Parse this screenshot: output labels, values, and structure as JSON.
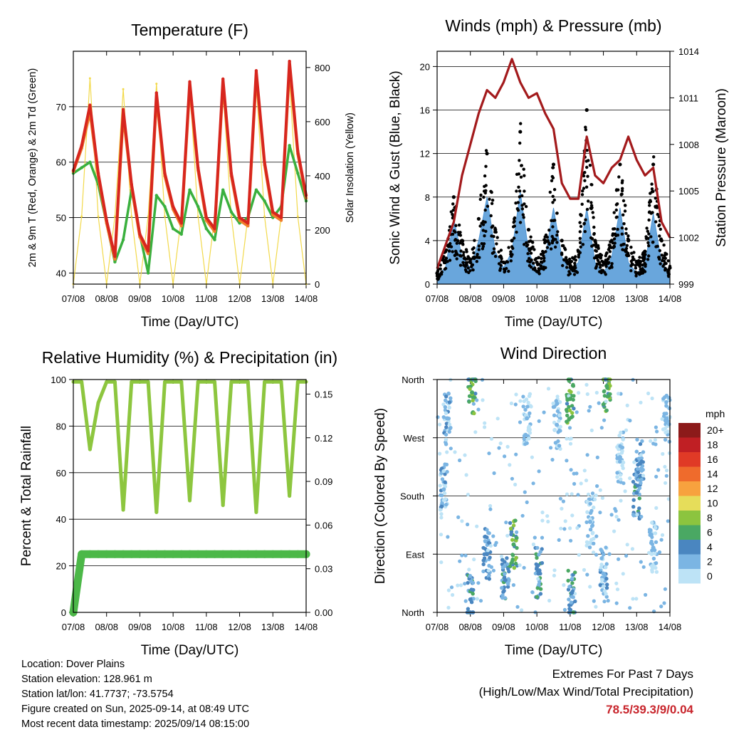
{
  "x_ticks": [
    "07/08",
    "08/08",
    "09/08",
    "10/08",
    "11/08",
    "12/08",
    "13/08",
    "14/08"
  ],
  "chart_data": [
    {
      "type": "line",
      "title": "Temperature (F)",
      "xlabel": "Time (Day/UTC)",
      "ylabel": "2m & 9m T (Red, Orange) & 2m Td (Green)",
      "ylabel_right": "Solar Insolation (Yellow)",
      "ylim": [
        38,
        80
      ],
      "yticks": [
        40,
        50,
        60,
        70
      ],
      "ylim_right": [
        0,
        860
      ],
      "yticks_right": [
        0,
        200,
        400,
        600,
        800
      ],
      "x": [
        0,
        0.25,
        0.5,
        0.75,
        1,
        1.25,
        1.5,
        1.75,
        2,
        2.25,
        2.5,
        2.75,
        3,
        3.25,
        3.5,
        3.75,
        4,
        4.25,
        4.5,
        4.75,
        5,
        5.25,
        5.5,
        5.75,
        6,
        6.25,
        6.5,
        6.75,
        7
      ],
      "series": [
        {
          "color": "#d7261e",
          "values": [
            58.5,
            63,
            70.3,
            58,
            49.5,
            43,
            69.5,
            56,
            47,
            44,
            72.5,
            58,
            52,
            49,
            74.5,
            59,
            50,
            48,
            75,
            58,
            50,
            49,
            76.5,
            60,
            51,
            50,
            78.2,
            62,
            54
          ]
        },
        {
          "color": "#f07d2a",
          "values": [
            58.3,
            62.5,
            69,
            57.5,
            49,
            42.5,
            68.5,
            55.5,
            46.5,
            43.5,
            71.5,
            57.5,
            51.5,
            48.5,
            73.5,
            58.5,
            49.5,
            47.5,
            74,
            57.5,
            49.5,
            48.5,
            75.5,
            59.5,
            50.5,
            49.5,
            77,
            61.5,
            53.5
          ]
        },
        {
          "color": "#3ab03e",
          "values": [
            58,
            59,
            60,
            56,
            49,
            42,
            46,
            55,
            47,
            40,
            54,
            52,
            48,
            47,
            55,
            52,
            48,
            46,
            55,
            51,
            49,
            50,
            55,
            53,
            50,
            52,
            63,
            58,
            53
          ]
        },
        {
          "color": "#f2d94b",
          "values": [
            0,
            250,
            760,
            250,
            0,
            250,
            720,
            250,
            0,
            250,
            740,
            250,
            0,
            250,
            730,
            250,
            0,
            250,
            720,
            250,
            0,
            250,
            740,
            250,
            0,
            250,
            760,
            250,
            0
          ]
        }
      ]
    },
    {
      "type": "scatter",
      "title": "Winds (mph) & Pressure (mb)",
      "xlabel": "Time (Day/UTC)",
      "ylabel": "Sonic Wind & Gust (Blue, Black)",
      "ylabel_right": "Station Pressure (Maroon)",
      "ylim": [
        0,
        21.4
      ],
      "yticks": [
        0,
        4,
        8,
        12,
        16,
        20
      ],
      "ylim_right": [
        999,
        1014
      ],
      "yticks_right": [
        999,
        1002,
        1005,
        1008,
        1011,
        1014
      ],
      "x": [
        0,
        0.25,
        0.5,
        0.75,
        1,
        1.25,
        1.5,
        1.75,
        2,
        2.25,
        2.5,
        2.75,
        3,
        3.25,
        3.5,
        3.75,
        4,
        4.25,
        4.5,
        4.75,
        5,
        5.25,
        5.5,
        5.75,
        6,
        6.25,
        6.5,
        6.75,
        7
      ],
      "series": [
        {
          "name": "Sonic Wind",
          "color": "#4f96d6",
          "values": [
            0.8,
            1.5,
            6,
            2.5,
            1.5,
            4,
            8,
            3,
            1.5,
            3,
            8.5,
            3,
            1.2,
            2.5,
            7,
            2.5,
            1.2,
            2,
            7,
            2,
            1,
            2.5,
            7,
            2,
            1,
            1.8,
            6.5,
            2,
            1
          ]
        },
        {
          "name": "Gust",
          "color": "#000000",
          "values": [
            1,
            3,
            8,
            4,
            2,
            6,
            12,
            5,
            2,
            4,
            14,
            5,
            2,
            4,
            11,
            4,
            2,
            3,
            16,
            4,
            2,
            4,
            11,
            4,
            2,
            3,
            11,
            4,
            1.5
          ]
        },
        {
          "name": "Station Pressure",
          "color": "#a31a1c",
          "values": [
            1000,
            1001.5,
            1003,
            1006,
            1008,
            1010,
            1011.5,
            1011,
            1012,
            1013.5,
            1012,
            1011,
            1011.3,
            1010,
            1009,
            1005.5,
            1004.5,
            1004.5,
            1008.5,
            1006,
            1005.5,
            1006.5,
            1007,
            1008.5,
            1007,
            1006,
            1006.5,
            1003,
            1002
          ]
        }
      ]
    },
    {
      "type": "line",
      "title": "Relative Humidity (%) & Precipitation (in)",
      "xlabel": "Time (Day/UTC)",
      "ylabel": "Percent & Total Rainfall",
      "ylim": [
        0,
        100
      ],
      "yticks": [
        0,
        20,
        40,
        60,
        80,
        100
      ],
      "ylim_right": [
        0,
        0.16
      ],
      "yticks_right": [
        "0.00",
        "0.03",
        "0.06",
        "0.09",
        "0.12",
        "0.15"
      ],
      "x": [
        0,
        0.25,
        0.5,
        0.75,
        1,
        1.25,
        1.5,
        1.75,
        2,
        2.25,
        2.5,
        2.75,
        3,
        3.25,
        3.5,
        3.75,
        4,
        4.25,
        4.5,
        4.75,
        5,
        5.25,
        5.5,
        5.75,
        6,
        6.25,
        6.5,
        6.75,
        7
      ],
      "series": [
        {
          "name": "Relative Humidity",
          "color": "#8dc63f",
          "values": [
            99,
            99,
            70,
            90,
            99,
            99,
            44,
            99,
            99,
            99,
            43,
            99,
            99,
            99,
            48,
            99,
            99,
            99,
            46,
            99,
            99,
            99,
            43,
            99,
            99,
            99,
            50,
            99,
            99
          ]
        },
        {
          "name": "Total Precipitation",
          "color": "#4cb848",
          "values": [
            0,
            0.04,
            0.04,
            0.04,
            0.04,
            0.04,
            0.04,
            0.04,
            0.04,
            0.04,
            0.04,
            0.04,
            0.04,
            0.04,
            0.04,
            0.04,
            0.04,
            0.04,
            0.04,
            0.04,
            0.04,
            0.04,
            0.04,
            0.04,
            0.04,
            0.04,
            0.04,
            0.04,
            0.04
          ]
        }
      ]
    },
    {
      "type": "scatter",
      "title": "Wind Direction",
      "xlabel": "Time (Day/UTC)",
      "ylabel": "Direction (Colored By Speed)",
      "yticks": [
        "North",
        "East",
        "South",
        "West",
        "North"
      ],
      "ylim": [
        0,
        360
      ],
      "legend_title": "mph",
      "legend_labels": [
        "20+",
        "18",
        "16",
        "14",
        "12",
        "10",
        "8",
        "6",
        "4",
        "2",
        "0"
      ],
      "legend_colors": [
        "#8c1a1a",
        "#c01f24",
        "#e03a26",
        "#ef6b2c",
        "#f7a23e",
        "#e6dd5a",
        "#8cc43f",
        "#4aa863",
        "#4a86c0",
        "#7bb5e3",
        "#bde3f6"
      ],
      "clusters": [
        {
          "day": 0.2,
          "dir": 190,
          "speed": 2
        },
        {
          "day": 0.3,
          "dir": 300,
          "speed": 2
        },
        {
          "day": 1.0,
          "dir": 20,
          "speed": 4
        },
        {
          "day": 1.05,
          "dir": 340,
          "speed": 6
        },
        {
          "day": 1.5,
          "dir": 90,
          "speed": 3
        },
        {
          "day": 2.05,
          "dir": 50,
          "speed": 4
        },
        {
          "day": 2.3,
          "dir": 105,
          "speed": 6
        },
        {
          "day": 2.7,
          "dir": 300,
          "speed": 1
        },
        {
          "day": 3.05,
          "dir": 60,
          "speed": 4
        },
        {
          "day": 3.6,
          "dir": 290,
          "speed": 1
        },
        {
          "day": 4.0,
          "dir": 330,
          "speed": 6
        },
        {
          "day": 4.05,
          "dir": 30,
          "speed": 4
        },
        {
          "day": 4.6,
          "dir": 140,
          "speed": 1
        },
        {
          "day": 5.0,
          "dir": 60,
          "speed": 2
        },
        {
          "day": 5.1,
          "dir": 350,
          "speed": 6
        },
        {
          "day": 5.5,
          "dir": 240,
          "speed": 1
        },
        {
          "day": 6.0,
          "dir": 185,
          "speed": 4
        },
        {
          "day": 6.1,
          "dir": 230,
          "speed": 3
        },
        {
          "day": 6.5,
          "dir": 100,
          "speed": 1
        },
        {
          "day": 6.9,
          "dir": 300,
          "speed": 1
        }
      ]
    }
  ],
  "info": {
    "location": "Location: Dover Plains",
    "elevation": "Station elevation: 128.961 m",
    "latlon": "Station lat/lon: 41.7737; -73.5754",
    "created": "Figure created on Sun, 2025-09-14, at 08:49 UTC",
    "recent": "Most recent data timestamp: 2025/09/14 08:15:00"
  },
  "extremes": {
    "title": "Extremes For Past 7 Days",
    "subtitle": "(High/Low/Max Wind/Total Precipitation)",
    "values": "78.5/39.3/9/0.04"
  }
}
